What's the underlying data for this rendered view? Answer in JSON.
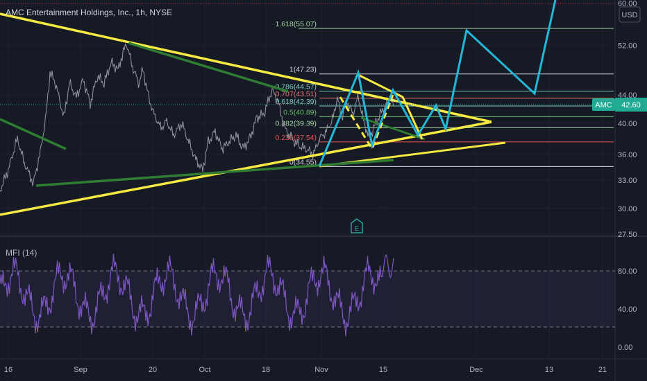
{
  "header": {
    "title": "AMC Entertainment Holdings, Inc., 1h, NYSE",
    "currency": "USD"
  },
  "price_tag": {
    "symbol": "AMC",
    "value": "42.60"
  },
  "colors": {
    "background": "#161a25",
    "price": "#8a8d96",
    "trendline": "#f5e942",
    "channel": "#2e7d32",
    "projection": "#24b8d8",
    "mfi": "#7e57c2",
    "fib_red": "#e53935",
    "fib_green": "#66bb6a",
    "fib_white": "#d1d4dc"
  },
  "chart_data": {
    "type": "line",
    "price_axis": {
      "scale": "log",
      "ticks": [
        "60.00",
        "52.00",
        "44.00",
        "40.00",
        "36.00",
        "33.00",
        "30.00",
        "27.50"
      ]
    },
    "time_axis": {
      "ticks": [
        "16",
        "Sep",
        "20",
        "Oct",
        "18",
        "Nov",
        "15",
        "Dec",
        "13",
        "21"
      ]
    },
    "fib_levels": [
      {
        "ratio": "1.618",
        "price": 55.07,
        "label": "1.618(55.07)",
        "color": "#a5d6a7"
      },
      {
        "ratio": "1",
        "price": 47.23,
        "label": "1(47.23)",
        "color": "#d1d4dc"
      },
      {
        "ratio": "0.786",
        "price": 44.57,
        "label": "0.786(44.57)",
        "color": "#80cbc4"
      },
      {
        "ratio": "0.707",
        "price": 43.51,
        "label": "0.707(43.51)",
        "color": "#e57373"
      },
      {
        "ratio": "0.618",
        "price": 42.39,
        "label": "0.618(42.39)",
        "color": "#80cbc4"
      },
      {
        "ratio": "0.5",
        "price": 40.89,
        "label": "0.5(40.89)",
        "color": "#66bb6a"
      },
      {
        "ratio": "0.382",
        "price": 39.39,
        "label": "0.382(39.39)",
        "color": "#a5d6a7"
      },
      {
        "ratio": "0.236",
        "price": 37.54,
        "label": "0.236(37.54)",
        "color": "#ef5350"
      },
      {
        "ratio": "0",
        "price": 34.55,
        "label": "0(34.55)",
        "color": "#d1d4dc"
      }
    ],
    "current_price": 42.6,
    "earnings_marker": "E",
    "mfi": {
      "label": "MFI (14)",
      "ticks": [
        "80.00",
        "40.00",
        "0.00"
      ],
      "upper_band": 80,
      "lower_band": 20
    }
  }
}
